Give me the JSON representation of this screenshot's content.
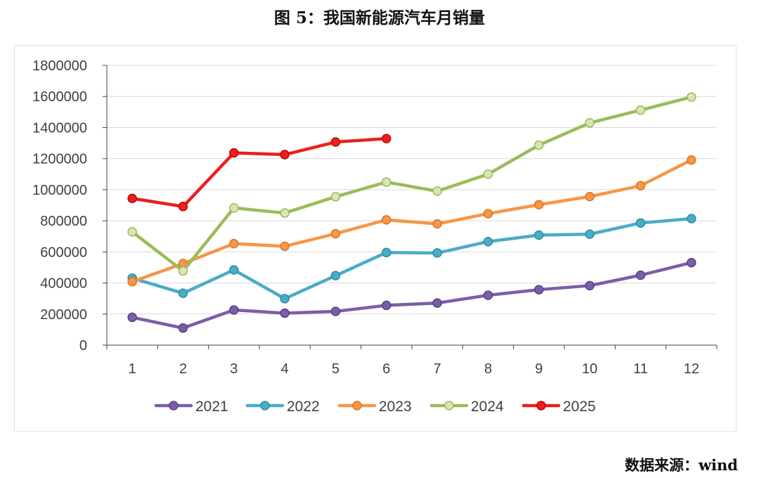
{
  "title": "图 5：我国新能源汽车月销量",
  "source": "数据来源：wind",
  "chart_data": {
    "type": "line",
    "x": [
      1,
      2,
      3,
      4,
      5,
      6,
      7,
      8,
      9,
      10,
      11,
      12
    ],
    "ylim": [
      0,
      1800000
    ],
    "yticks": [
      0,
      200000,
      400000,
      600000,
      800000,
      1000000,
      1200000,
      1400000,
      1600000,
      1800000
    ],
    "grid": true,
    "legend": "bottom",
    "series": [
      {
        "name": "2021",
        "color": "#7b5ea7",
        "values": [
          179000,
          110000,
          226000,
          206000,
          217000,
          256000,
          271000,
          321000,
          357000,
          383000,
          450000,
          531000
        ]
      },
      {
        "name": "2022",
        "color": "#4bacc6",
        "values": [
          431000,
          334000,
          484000,
          299000,
          447000,
          596000,
          593000,
          666000,
          708000,
          714000,
          786000,
          814000
        ]
      },
      {
        "name": "2023",
        "color": "#f79646",
        "values": [
          408000,
          525000,
          653000,
          636000,
          717000,
          806000,
          780000,
          846000,
          904000,
          956000,
          1026000,
          1191000
        ]
      },
      {
        "name": "2024",
        "color": "#9bbb59",
        "values": [
          729000,
          477000,
          883000,
          850000,
          955000,
          1049000,
          991000,
          1100000,
          1287000,
          1430000,
          1512000,
          1596000
        ]
      },
      {
        "name": "2025",
        "color": "#e8211d",
        "values": [
          944000,
          892000,
          1237000,
          1226000,
          1307000,
          1329000,
          null,
          null,
          null,
          null,
          null,
          null
        ]
      }
    ]
  }
}
